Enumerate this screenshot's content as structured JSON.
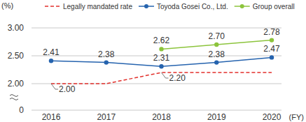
{
  "chart_data": {
    "type": "line",
    "y_label": "(%)",
    "x_label": "(FY)",
    "categories": [
      "2016",
      "2017",
      "2018",
      "2019",
      "2020"
    ],
    "ylim": [
      0,
      3.0
    ],
    "yticks": [
      0,
      {
        "value": 2.0,
        "label": "2.00"
      },
      {
        "value": 2.5,
        "label": "2.50"
      },
      {
        "value": 3.0,
        "label": "3.00"
      }
    ],
    "grid": true,
    "data_labels": true,
    "legend": "top",
    "series": [
      {
        "name": "Legally mandated rate",
        "color": "#e2312c",
        "line_style": "dashed",
        "marker": "none",
        "values": [
          2.0,
          2.0,
          2.2,
          2.2,
          2.2
        ],
        "value_labels": [
          "2.00",
          null,
          "2.20",
          null,
          null
        ]
      },
      {
        "name": "Toyoda Gosei Co., Ltd.",
        "color": "#2563ae",
        "line_style": "solid",
        "marker": "circle",
        "values": [
          2.41,
          2.38,
          2.31,
          2.38,
          2.47
        ],
        "value_labels": [
          "2.41",
          "2.38",
          "2.31",
          "2.38",
          "2.47"
        ]
      },
      {
        "name": "Group overall",
        "color": "#8cc43c",
        "line_style": "solid",
        "marker": "circle",
        "values": [
          null,
          null,
          2.62,
          2.7,
          2.78
        ],
        "value_labels": [
          null,
          null,
          "2.62",
          "2.70",
          "2.78"
        ]
      }
    ]
  }
}
